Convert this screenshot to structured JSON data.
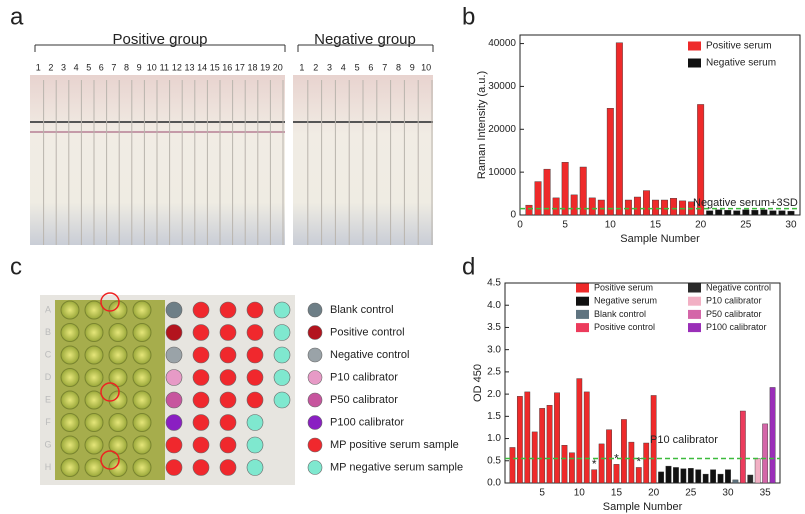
{
  "panels": {
    "labels": [
      "a",
      "b",
      "c",
      "d"
    ],
    "a": {
      "positive_title": "Positive group",
      "negative_title": "Negative group",
      "positive_numbers": [
        1,
        2,
        3,
        4,
        5,
        6,
        7,
        8,
        9,
        10,
        11,
        12,
        13,
        14,
        15,
        16,
        17,
        18,
        19,
        20
      ],
      "negative_numbers": [
        1,
        2,
        3,
        4,
        5,
        6,
        7,
        8,
        9,
        10
      ]
    },
    "c": {
      "rows": [
        "A",
        "B",
        "C",
        "D",
        "E",
        "F",
        "G",
        "H"
      ],
      "legend": [
        {
          "label": "Blank control",
          "color": "#6e7f87"
        },
        {
          "label": "Positive control",
          "color": "#b3141e"
        },
        {
          "label": "Negative control",
          "color": "#9aa3a8"
        },
        {
          "label": "P10 calibrator",
          "color": "#e79ac6"
        },
        {
          "label": "P50 calibrator",
          "color": "#c7559e"
        },
        {
          "label": "P100 calibrator",
          "color": "#8a1fc2"
        },
        {
          "label": "MP positive serum sample",
          "color": "#f0282d"
        },
        {
          "label": "MP negative serum sample",
          "color": "#7fe8cf"
        }
      ]
    }
  },
  "chart_data": [
    {
      "type": "bar",
      "x_label": "Sample Number",
      "y_label": "Raman Intensity (a.u.)",
      "xlim": [
        0,
        31
      ],
      "xticks": [
        0,
        5,
        10,
        15,
        20,
        25,
        30
      ],
      "ylim": [
        0,
        42000
      ],
      "yticks": [
        0,
        10000,
        20000,
        30000,
        40000
      ],
      "series": [
        {
          "name": "Positive serum",
          "color": "#ee2a2a",
          "x": [
            1,
            2,
            3,
            4,
            5,
            6,
            7,
            8,
            9,
            10,
            11,
            12,
            13,
            14,
            15,
            16,
            17,
            18,
            19,
            20
          ],
          "values": [
            2300,
            7800,
            10700,
            4000,
            12300,
            4700,
            11200,
            4000,
            3500,
            24900,
            40200,
            3500,
            4200,
            5700,
            3500,
            3500,
            3900,
            3300,
            3100,
            25800
          ]
        },
        {
          "name": "Negative serum",
          "color": "#111111",
          "x": [
            21,
            22,
            23,
            24,
            25,
            26,
            27,
            28,
            29,
            30
          ],
          "values": [
            1000,
            1200,
            1100,
            1000,
            1200,
            1100,
            1200,
            1000,
            1000,
            900
          ]
        }
      ],
      "threshold": {
        "value": 1500,
        "label": "Negative serum+3SD",
        "color": "#3dbb3d"
      }
    },
    {
      "type": "bar",
      "x_label": "Sample Number",
      "y_label": "OD 450",
      "xlim": [
        0,
        37
      ],
      "xticks": [
        5,
        10,
        15,
        20,
        25,
        30,
        35
      ],
      "ylim": [
        0,
        4.5
      ],
      "yticks": [
        {
          "value": 0,
          "label": "0.0"
        },
        0.5,
        {
          "value": 1,
          "label": "1.0"
        },
        1.5,
        {
          "value": 2,
          "label": "2.0"
        },
        2.5,
        {
          "value": 3,
          "label": "3.0"
        },
        3.5,
        {
          "value": 4,
          "label": "4.0"
        },
        4.5
      ],
      "series": [
        {
          "name": "Positive serum",
          "color": "#ee2a2a",
          "x": [
            1,
            2,
            3,
            4,
            5,
            6,
            7,
            8,
            9,
            10,
            11,
            12,
            13,
            14,
            15,
            16,
            17,
            18,
            19,
            20
          ],
          "values": [
            0.8,
            1.95,
            2.05,
            1.15,
            1.68,
            1.75,
            2.03,
            0.85,
            0.68,
            2.35,
            2.05,
            0.3,
            0.88,
            1.2,
            0.42,
            1.43,
            0.92,
            0.35,
            0.9,
            1.97
          ]
        },
        {
          "name": "Negative serum",
          "color": "#111111",
          "x": [
            21,
            22,
            23,
            24,
            25,
            26,
            27,
            28,
            29,
            30
          ],
          "values": [
            0.25,
            0.38,
            0.35,
            0.32,
            0.33,
            0.3,
            0.2,
            0.3,
            0.2,
            0.3
          ]
        },
        {
          "name": "Blank control",
          "color": "#5f7480",
          "x": [
            31
          ],
          "values": [
            0.07
          ]
        },
        {
          "name": "Positive control",
          "color": "#ec3b5c",
          "x": [
            32
          ],
          "values": [
            1.62
          ]
        },
        {
          "name": "Negative control",
          "color": "#2a2a2a",
          "x": [
            33
          ],
          "values": [
            0.18
          ]
        },
        {
          "name": "P10 calibrator",
          "color": "#f2b0c4",
          "x": [
            34
          ],
          "values": [
            0.55
          ]
        },
        {
          "name": "P50 calibrator",
          "color": "#d466a8",
          "x": [
            35
          ],
          "values": [
            1.33
          ]
        },
        {
          "name": "P100 calibrator",
          "color": "#9a2fb8",
          "x": [
            36
          ],
          "values": [
            2.15
          ]
        }
      ],
      "threshold": {
        "value": 0.55,
        "label": "P10 calibrator",
        "color": "#3dbb3d"
      },
      "annotations": [
        {
          "x": 12,
          "label": "*"
        },
        {
          "x": 15,
          "label": "*"
        },
        {
          "x": 18,
          "label": "*"
        }
      ]
    }
  ]
}
